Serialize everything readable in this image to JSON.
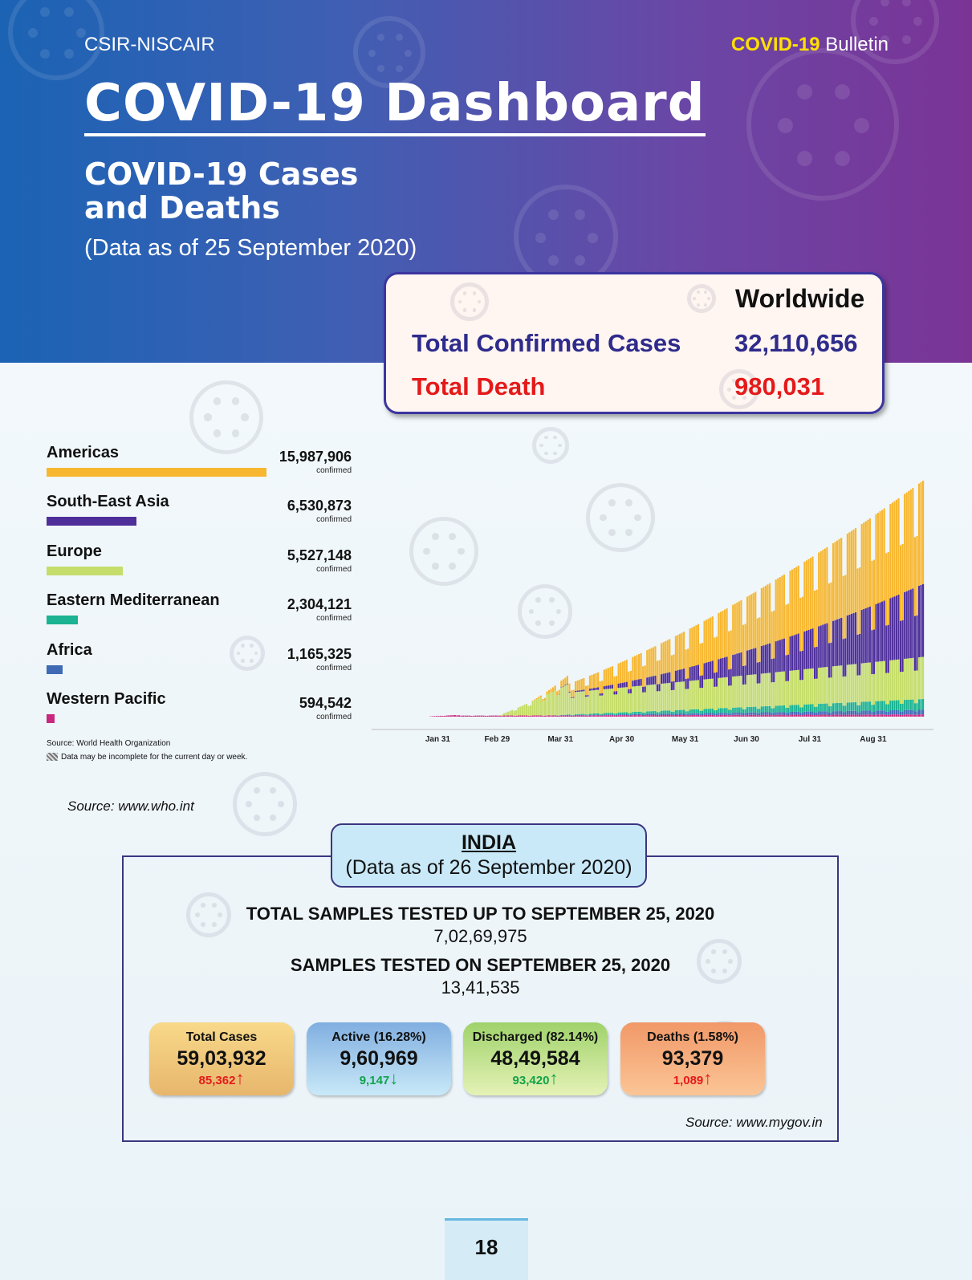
{
  "header": {
    "org": "CSIR-NISCAIR",
    "bulletin_highlight": "COVID-19",
    "bulletin_rest": " Bulletin",
    "title": "COVID-19 Dashboard",
    "subtitle_line1": "COVID-19 Cases",
    "subtitle_line2": "and Deaths",
    "as_of": "(Data as of 25 September 2020)"
  },
  "worldwide": {
    "heading": "Worldwide",
    "confirmed_label": "Total Confirmed Cases",
    "confirmed_value": "32,110,656",
    "death_label": "Total Death",
    "death_value": "980,031",
    "colors": {
      "confirmed": "#2e2b8c",
      "death": "#e41a1a"
    }
  },
  "regions": [
    {
      "name": "Americas",
      "value": "15,987,906",
      "unit": "confirmed",
      "color": "#f7b731",
      "share": 1.0
    },
    {
      "name": "South-East Asia",
      "value": "6,530,873",
      "unit": "confirmed",
      "color": "#4e2f9a",
      "share": 0.408
    },
    {
      "name": "Europe",
      "value": "5,527,148",
      "unit": "confirmed",
      "color": "#c5dd6a",
      "share": 0.346
    },
    {
      "name": "Eastern Mediterranean",
      "value": "2,304,121",
      "unit": "confirmed",
      "color": "#1bb391",
      "share": 0.144
    },
    {
      "name": "Africa",
      "value": "1,165,325",
      "unit": "confirmed",
      "color": "#3f6ab5",
      "share": 0.073
    },
    {
      "name": "Western Pacific",
      "value": "594,542",
      "unit": "confirmed",
      "color": "#c8287f",
      "share": 0.037
    }
  ],
  "who_source": "Source: World Health Organization",
  "who_note": "Data may be incomplete for the current day or week.",
  "source_who": "Source: www.who.int",
  "chart_data": {
    "type": "bar",
    "stacked": true,
    "x_ticks": [
      "Jan 31",
      "Feb 29",
      "Mar 31",
      "Apr 30",
      "May 31",
      "Jun 30",
      "Jul 31",
      "Aug 31"
    ],
    "x_start": "2020-01-01",
    "x_end": "2020-09-24",
    "series_order": [
      "Western Pacific",
      "Africa",
      "Eastern Mediterranean",
      "Europe",
      "South-East Asia",
      "Americas"
    ],
    "series_colors": {
      "Western Pacific": "#c8287f",
      "Africa": "#3f6ab5",
      "Eastern Mediterranean": "#1bb391",
      "Europe": "#c5dd6a",
      "South-East Asia": "#4e2f9a",
      "Americas": "#f7b731"
    },
    "approx_daily_new_cases_at_end": {
      "Americas": 135000,
      "South-East Asia": 95000,
      "Europe": 55000,
      "Eastern Mediterranean": 14000,
      "Africa": 6000,
      "Western Pacific": 3000
    },
    "grid": false,
    "legend": "left"
  },
  "india": {
    "title": "INDIA",
    "as_of": "(Data as of 26 September 2020)",
    "total_samples_label": "TOTAL SAMPLES TESTED UP TO SEPTEMBER 25, 2020",
    "total_samples_value": "7,02,69,975",
    "day_samples_label": "SAMPLES TESTED ON SEPTEMBER 25, 2020",
    "day_samples_value": "13,41,535",
    "cards": [
      {
        "label": "Total Cases",
        "value": "59,03,932",
        "delta": "85,362",
        "arrow": "↑",
        "delta_color": "#e41a1a",
        "arrow_color": "#e41a1a",
        "bg_top": "#f8d98a",
        "bg_bottom": "#e7b66d"
      },
      {
        "label": "Active (16.28%)",
        "value": "9,60,969",
        "delta": "9,147",
        "arrow": "↓",
        "delta_color": "#11a34a",
        "arrow_color": "#11a34a",
        "bg_top": "#80aee0",
        "bg_bottom": "#c9e9f8"
      },
      {
        "label": "Discharged (82.14%)",
        "value": "48,49,584",
        "delta": "93,420",
        "arrow": "↑",
        "delta_color": "#11a34a",
        "arrow_color": "#11a34a",
        "bg_top": "#9fd26b",
        "bg_bottom": "#e5f2b6"
      },
      {
        "label": "Deaths (1.58%)",
        "value": "93,379",
        "delta": "1,089",
        "arrow": "↑",
        "delta_color": "#e41a1a",
        "arrow_color": "#e41a1a",
        "bg_top": "#f19868",
        "bg_bottom": "#fbc596"
      }
    ],
    "source": "Source: www.mygov.in"
  },
  "page_number": "18"
}
